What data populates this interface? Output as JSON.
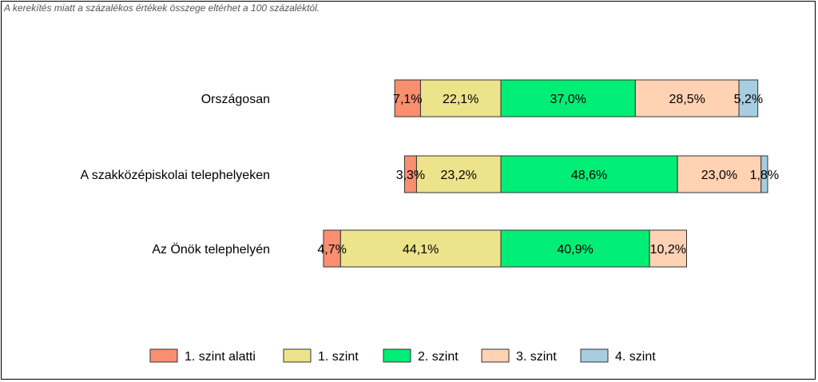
{
  "note": "A kerekítés miatt a  százalékos értékek összege eltérhet a 100 százaléktól.",
  "chart_data": {
    "type": "bar",
    "orientation": "horizontal",
    "stacked": true,
    "diverging": true,
    "categories": [
      "Országosan",
      "A szakközépiskolai telephelyeken",
      "Az Önök telephelyén"
    ],
    "series": [
      {
        "name": "1. szint alatti",
        "color": "#F98F6F",
        "values": [
          7.1,
          3.3,
          4.7
        ],
        "labels": [
          "7,1%",
          "3,3%",
          "4,7%"
        ]
      },
      {
        "name": "1. szint",
        "color": "#EDE38B",
        "values": [
          22.1,
          23.2,
          44.1
        ],
        "labels": [
          "22,1%",
          "23,2%",
          "44,1%"
        ]
      },
      {
        "name": "2. szint",
        "color": "#00EE76",
        "values": [
          37.0,
          48.6,
          40.9
        ],
        "labels": [
          "37,0%",
          "48,6%",
          "40,9%"
        ]
      },
      {
        "name": "3. szint",
        "color": "#FFD2B4",
        "values": [
          28.5,
          23.0,
          10.2
        ],
        "labels": [
          "28,5%",
          "23,0%",
          "10,2%"
        ]
      },
      {
        "name": "4. szint",
        "color": "#A6CEE0",
        "values": [
          5.2,
          1.8,
          0
        ],
        "labels": [
          "5,2%",
          "1,8%",
          ""
        ]
      }
    ],
    "legend_position": "bottom",
    "grid": false
  }
}
